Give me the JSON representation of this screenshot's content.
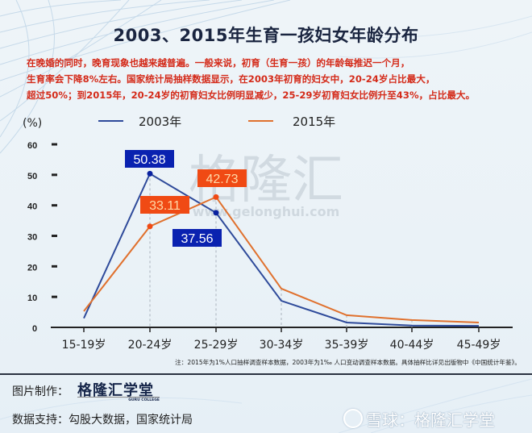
{
  "title": "2003、2015年生育一孩妇女年龄分布",
  "description": [
    "在晚婚的同时，晚育现象也越来越普遍。一般来说，初育（生育一孩）的年龄每推迟一个月，",
    "生育率会下降8%左右。国家统计局抽样数据显示，在2003年初育的妇女中，20-24岁占比最大，",
    "超过50%；到2015年，20-24岁的初育妇女比例明显减少，25-29岁初育妇女比例升至43%，占比最大。"
  ],
  "watermark": {
    "text": "格隆汇",
    "url_text": "www.gelonghui.com"
  },
  "note": "注：2015年为1%人口抽样调查样本数据，2003年为1‰ 人口变动调查样本数据。具体抽样比详见出版物中《中国统计年鉴》。",
  "credits": {
    "made_by_label": "图片制作：",
    "brand": "格隆汇学堂",
    "brand_sub": "GURU COLLEGE",
    "data_label": "数据支持：",
    "data_source": "勾股大数据，国家统计局"
  },
  "footer_watermark": "雪球：格隆汇学堂",
  "colors": {
    "series_2003": "#2e4a9a",
    "series_2015": "#e0712e",
    "label_2003_bg": "#0a22b0",
    "label_2015_bg": "#f04a14",
    "title": "#1a2540",
    "desc": "#d42b1a"
  },
  "chart_data": {
    "type": "line",
    "title": "2003、2015年生育一孩妇女年龄分布",
    "xlabel": "",
    "ylabel": "（%）",
    "ylim": [
      0,
      60
    ],
    "yticks": [
      0,
      10,
      20,
      30,
      40,
      50,
      60
    ],
    "categories": [
      "15-19岁",
      "20-24岁",
      "25-29岁",
      "30-34岁",
      "35-39岁",
      "40-44岁",
      "45-49岁"
    ],
    "series": [
      {
        "name": "2003年",
        "values": [
          3.0,
          50.38,
          37.56,
          8.7,
          1.6,
          0.6,
          0.5
        ]
      },
      {
        "name": "2015年",
        "values": [
          5.3,
          33.11,
          42.73,
          12.7,
          4.0,
          2.4,
          1.6
        ]
      }
    ],
    "data_labels": [
      {
        "series": "2003年",
        "category": "20-24岁",
        "text": "50.38"
      },
      {
        "series": "2003年",
        "category": "25-29岁",
        "text": "37.56"
      },
      {
        "series": "2015年",
        "category": "20-24岁",
        "text": "33.11"
      },
      {
        "series": "2015年",
        "category": "25-29岁",
        "text": "42.73"
      }
    ],
    "legend_position": "top",
    "grid": false
  }
}
